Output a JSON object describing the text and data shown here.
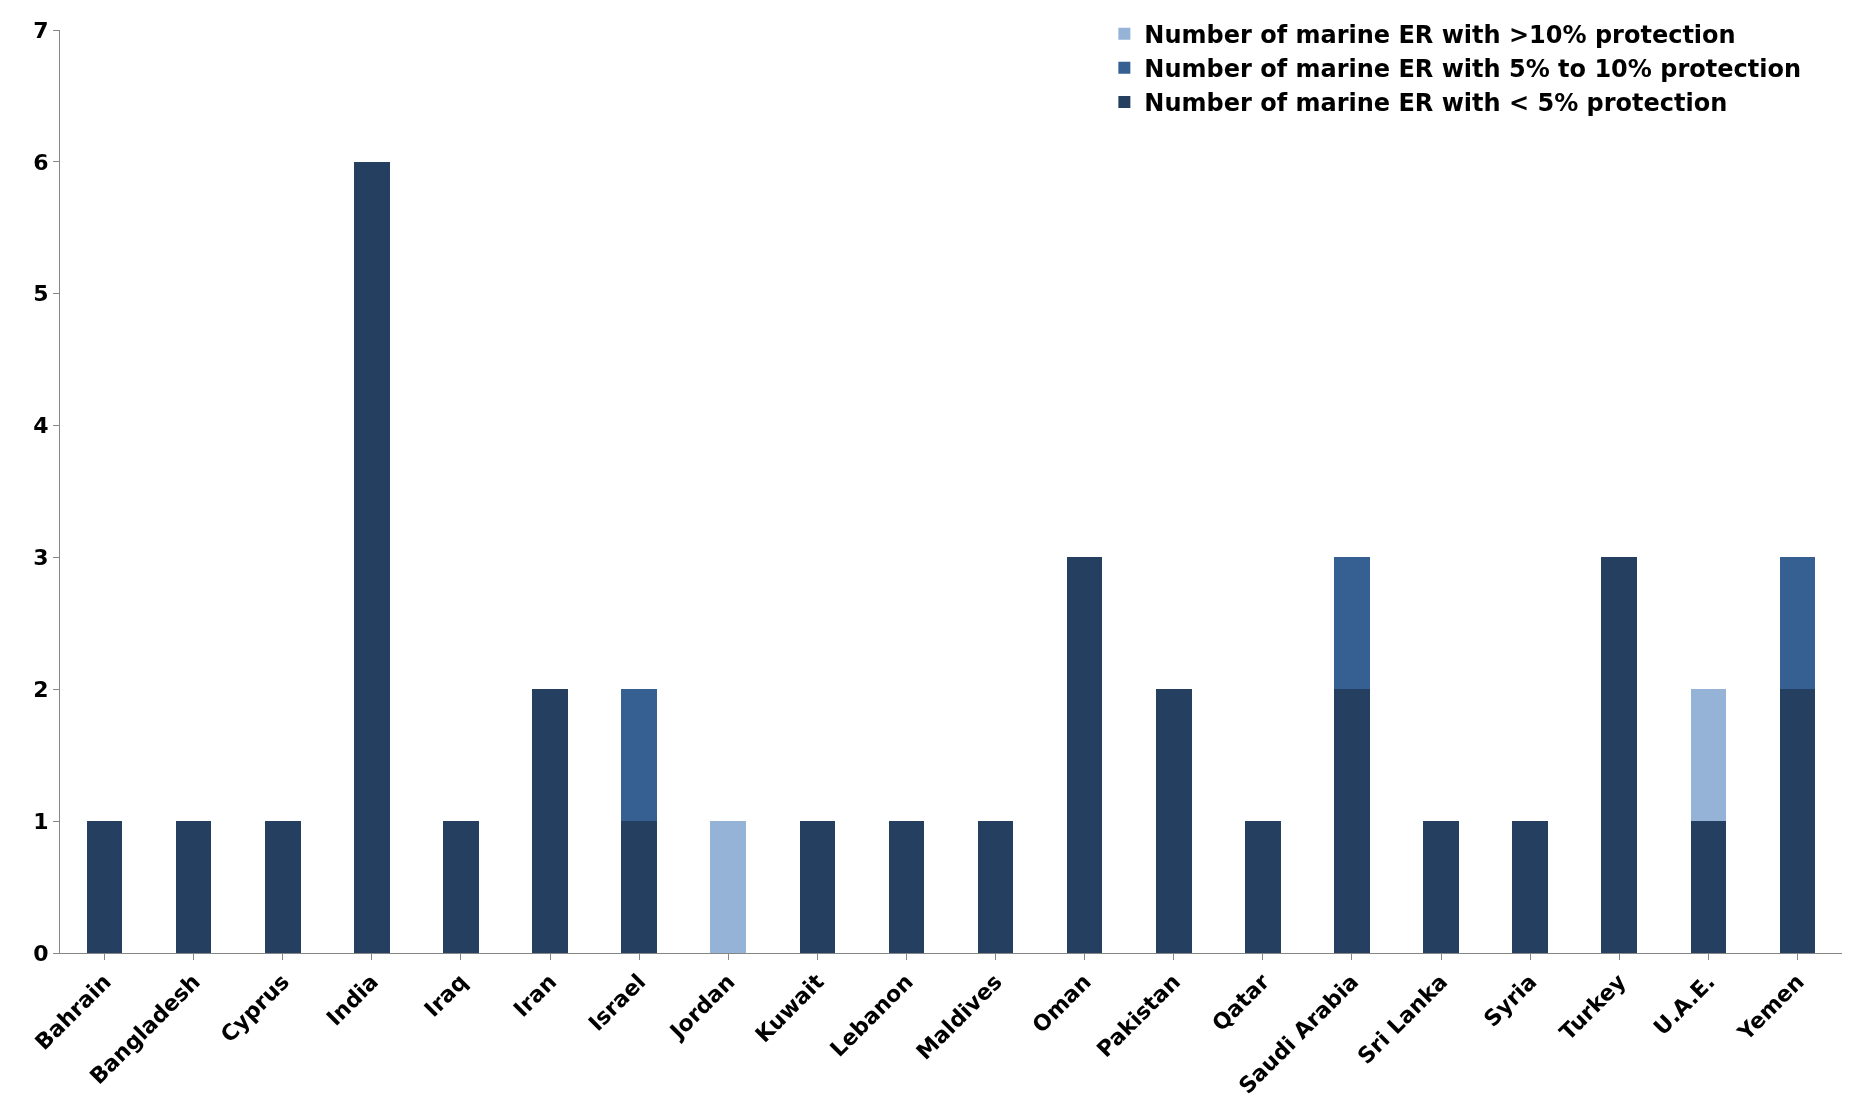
{
  "chart_data": {
    "type": "bar",
    "stacked": true,
    "categories": [
      "Bahrain",
      "Bangladesh",
      "Cyprus",
      "India",
      "Iraq",
      "Iran",
      "Israel",
      "Jordan",
      "Kuwait",
      "Lebanon",
      "Maldives",
      "Oman",
      "Pakistan",
      "Qatar",
      "Saudi Arabia",
      "Sri Lanka",
      "Syria",
      "Turkey",
      "U.A.E.",
      "Yemen"
    ],
    "series": [
      {
        "name": "Number of marine ER with < 5% protection",
        "color": "#243f60",
        "values": [
          1,
          1,
          1,
          6,
          1,
          2,
          1,
          0,
          1,
          1,
          1,
          3,
          2,
          1,
          2,
          1,
          1,
          3,
          1,
          2
        ]
      },
      {
        "name": "Number of marine ER with 5% to 10% protection",
        "color": "#376092",
        "values": [
          0,
          0,
          0,
          0,
          0,
          0,
          1,
          0,
          0,
          0,
          0,
          0,
          0,
          0,
          1,
          0,
          0,
          0,
          0,
          1
        ]
      },
      {
        "name": "Number of marine ER with >10% protection",
        "color": "#95b3d7",
        "values": [
          0,
          0,
          0,
          0,
          0,
          0,
          0,
          1,
          0,
          0,
          0,
          0,
          0,
          0,
          0,
          0,
          0,
          0,
          1,
          0
        ]
      }
    ],
    "ylim": [
      0,
      7
    ],
    "yticks": [
      0,
      1,
      2,
      3,
      4,
      5,
      6,
      7
    ],
    "legend": "top right"
  }
}
